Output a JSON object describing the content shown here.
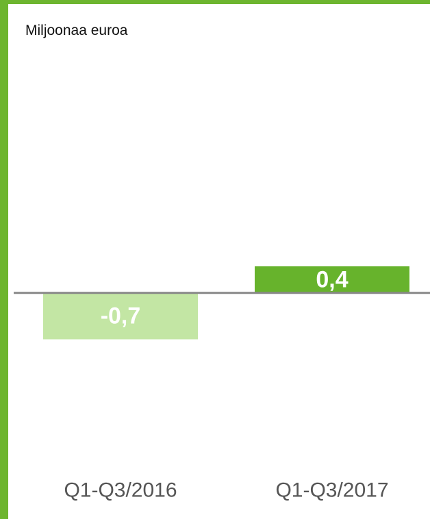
{
  "colors": {
    "frame": "#6db52f",
    "negative_bar": "#c3e6a4",
    "positive_bar": "#67b32c",
    "zero_line": "#888888",
    "bar_label": "#ffffff",
    "category_label": "#555555"
  },
  "unit_label": "Miljoonaa euroa",
  "chart_data": {
    "type": "bar",
    "ylabel": "Miljoonaa euroa",
    "xlabel": "",
    "categories": [
      "Q1-Q3/2016",
      "Q1-Q3/2017"
    ],
    "values": [
      -0.7,
      0.4
    ],
    "value_labels": [
      "-0,7",
      "0,4"
    ],
    "bar_colors": [
      "#c3e6a4",
      "#67b32c"
    ],
    "ylim": [
      -2.5,
      4.0
    ],
    "grid": false,
    "legend": "none"
  }
}
